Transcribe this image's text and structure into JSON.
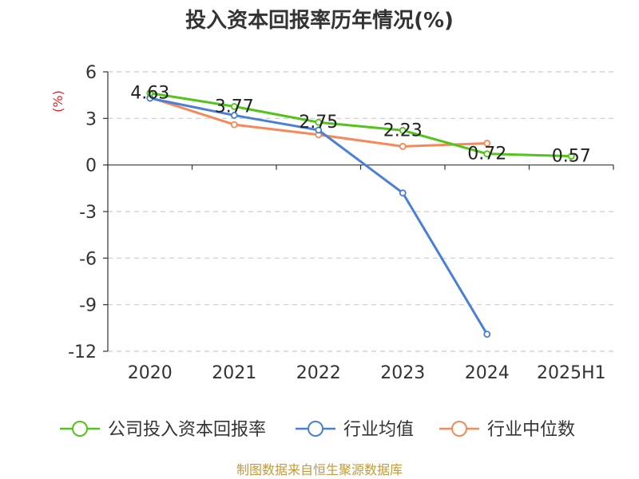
{
  "chart_data": {
    "type": "line",
    "title": "投入资本回报率历年情况(%)",
    "ylabel": "(%)",
    "xlabel": "",
    "categories": [
      "2020",
      "2021",
      "2022",
      "2023",
      "2024",
      "2025H1"
    ],
    "ylim": [
      -12,
      6
    ],
    "yticks": [
      6,
      3,
      0,
      -3,
      -6,
      -9,
      -12
    ],
    "grid": true,
    "legend_position": "bottom",
    "series": [
      {
        "name": "公司投入资本回报率",
        "color": "#52c41a",
        "values": [
          4.63,
          3.77,
          2.75,
          2.23,
          0.72,
          0.57
        ],
        "show_labels": true
      },
      {
        "name": "行业均值",
        "color": "#4a7fd8",
        "values": [
          4.3,
          3.2,
          2.25,
          -1.8,
          -10.9,
          null
        ],
        "show_labels": false
      },
      {
        "name": "行业中位数",
        "color": "#f5895a",
        "values": [
          4.35,
          2.6,
          1.95,
          1.2,
          1.4,
          null
        ],
        "show_labels": false
      }
    ],
    "data_labels": [
      "4.63",
      "3.77",
      "2.75",
      "2.23",
      "0.72",
      "0.57"
    ]
  },
  "footer": {
    "source": "制图数据来自恒生聚源数据库"
  }
}
